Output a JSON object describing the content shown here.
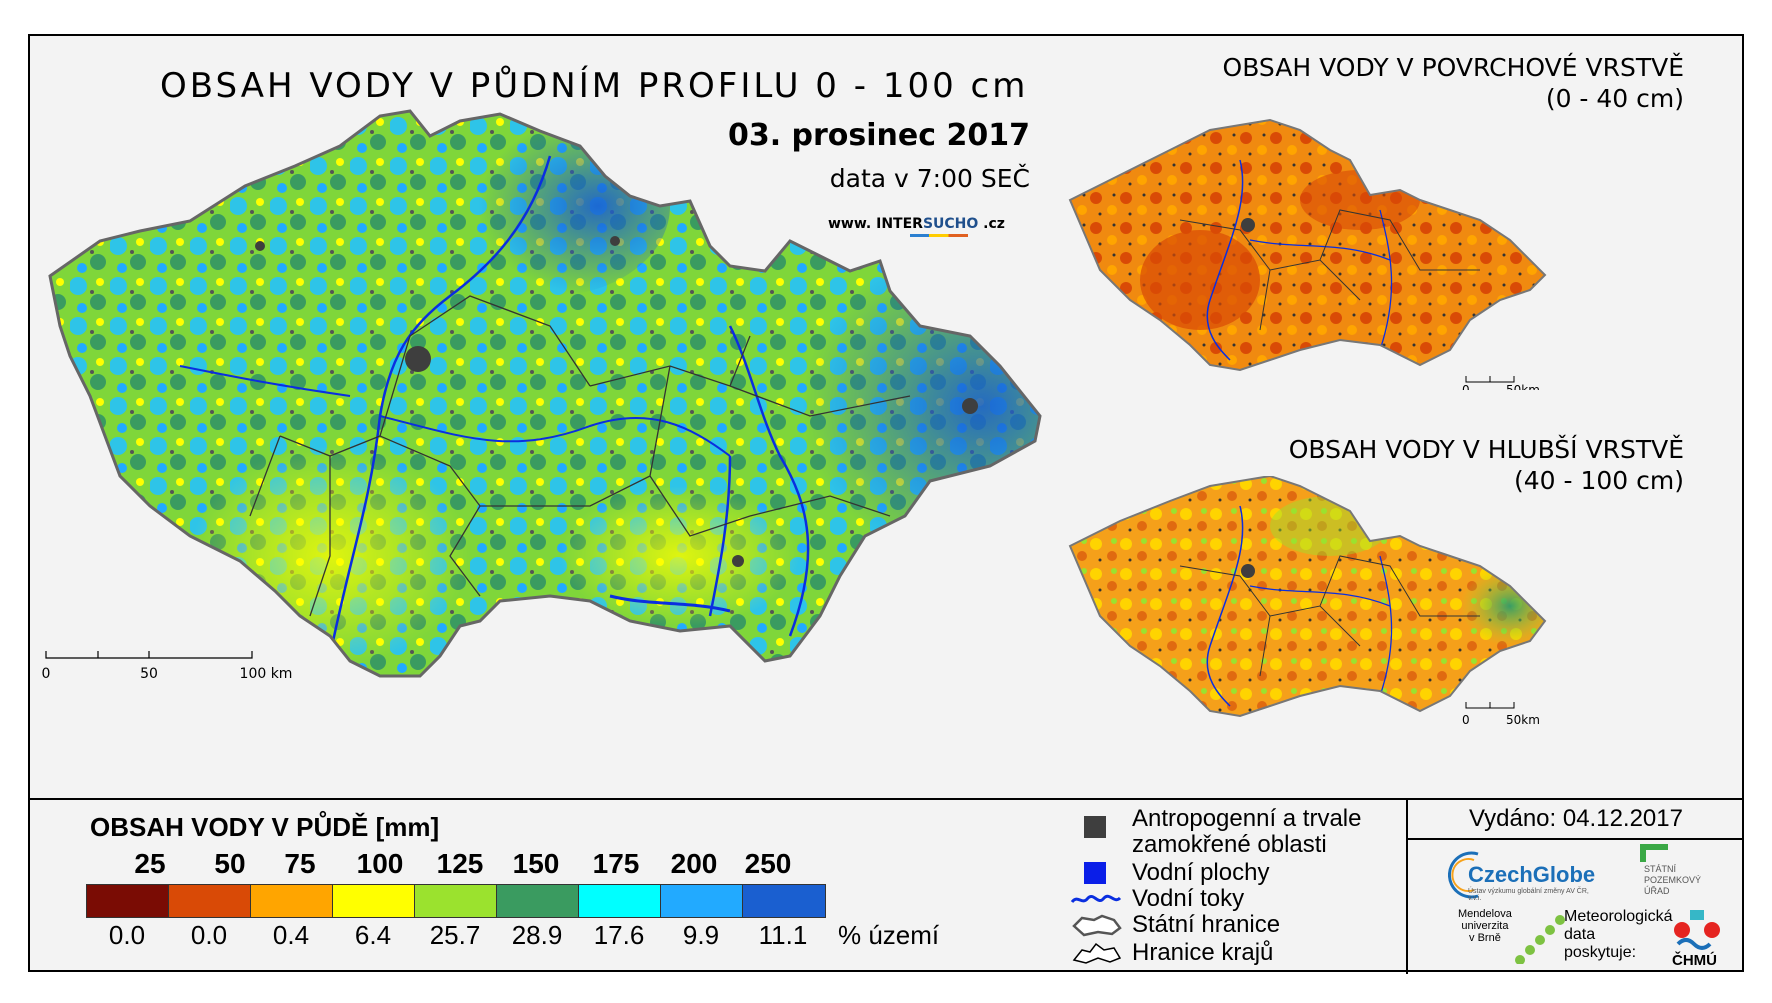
{
  "main_map": {
    "title": "OBSAH VODY V PŮDNÍM PROFILU 0 - 100 cm",
    "date": "03. prosinec 2017",
    "time": "data v 7:00 SEČ",
    "website_prefix": "www. ",
    "website_main": "INTER",
    "website_highlight": "SUCHO",
    "website_suffix": " .cz",
    "scalebar": [
      "0",
      "50",
      "100 km"
    ]
  },
  "inset_surface": {
    "title": "OBSAH VODY V POVRCHOVÉ VRSTVĚ",
    "subtitle": "(0 - 40 cm)",
    "scalebar": [
      "0",
      "50km"
    ]
  },
  "inset_deep": {
    "title": "OBSAH VODY V HLUBŠÍ VRSTVĚ",
    "subtitle": "(40 - 100 cm)",
    "scalebar": [
      "0",
      "50km"
    ]
  },
  "legend": {
    "title": "OBSAH VODY V PŮDĚ [mm]",
    "classes": [
      "25",
      "50",
      "75",
      "100",
      "125",
      "150",
      "175",
      "200",
      "250"
    ],
    "colors": [
      "#7a0c04",
      "#d94a06",
      "#ffa500",
      "#ffff00",
      "#9be22e",
      "#3a9b60",
      "#00ffff",
      "#22aaff",
      "#1a5fd0"
    ],
    "percentages": [
      "0.0",
      "0.0",
      "0.4",
      "6.4",
      "25.7",
      "28.9",
      "17.6",
      "9.9",
      "11.1"
    ],
    "percent_unit": "% území"
  },
  "key": {
    "anthropogenic_line1": "Antropogenní a trvale",
    "anthropogenic_line2": "zamokřené oblasti",
    "water_bodies": "Vodní plochy",
    "rivers": "Vodní toky",
    "state_border": "Státní hranice",
    "region_border": "Hranice krajů"
  },
  "issued": "Vydáno: 04.12.2017",
  "logos": {
    "czechglobe": "CzechGlobe",
    "czechglobe_sub": "Ústav výzkumu globální změny AV ČR, v.v.i.",
    "spu": "STÁTNÍ POZEMKOVÝ ÚŘAD",
    "mendel_line1": "Mendelova",
    "mendel_line2": "univerzita",
    "mendel_line3": "v Brně",
    "met_line1": "Meteorologická",
    "met_line2": "data",
    "met_line3": "poskytuje:",
    "chmu": "ČHMÚ"
  }
}
